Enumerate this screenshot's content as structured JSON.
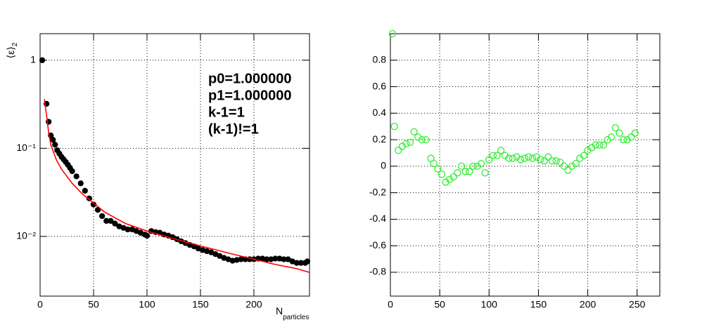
{
  "chart_data": [
    {
      "type": "scatter",
      "log_y": true,
      "grid": true,
      "ylabel": "⟨ε⟩",
      "ylabel_sub": "2",
      "xlabel": "N",
      "xlabel_sub": "particles",
      "annotations": [
        "p0=1.000000",
        "p1=1.000000",
        "k-1=1",
        "(k-1)!=1"
      ],
      "xlim": [
        0,
        252
      ],
      "ylim": [
        0.0021,
        2
      ],
      "xticks": [
        0,
        50,
        100,
        150,
        200
      ],
      "yticks": [
        {
          "value": 0.01,
          "label": "10⁻²"
        },
        {
          "value": 0.1,
          "label": "10⁻¹"
        },
        1
      ],
      "series": [
        {
          "color": "#000000",
          "style": "points-filled",
          "x": [
            2,
            6,
            8,
            10,
            12,
            14,
            16,
            18,
            20,
            22,
            24,
            26,
            28,
            30,
            34,
            38,
            42,
            46,
            50,
            54,
            58,
            62,
            66,
            70,
            74,
            78,
            82,
            86,
            90,
            94,
            98,
            100,
            104,
            108,
            112,
            116,
            120,
            124,
            128,
            132,
            136,
            140,
            144,
            148,
            152,
            156,
            160,
            164,
            168,
            172,
            176,
            180,
            184,
            188,
            192,
            196,
            200,
            204,
            208,
            212,
            216,
            220,
            224,
            228,
            232,
            236,
            240,
            244,
            248,
            250
          ],
          "values": [
            1.0,
            0.32,
            0.2,
            0.14,
            0.125,
            0.11,
            0.095,
            0.087,
            0.08,
            0.075,
            0.07,
            0.065,
            0.06,
            0.055,
            0.048,
            0.04,
            0.033,
            0.027,
            0.023,
            0.02,
            0.017,
            0.015,
            0.015,
            0.014,
            0.013,
            0.0125,
            0.012,
            0.012,
            0.0115,
            0.011,
            0.0105,
            0.0102,
            0.0115,
            0.0112,
            0.011,
            0.0105,
            0.0102,
            0.0098,
            0.0093,
            0.0088,
            0.0084,
            0.008,
            0.0077,
            0.0073,
            0.007,
            0.0068,
            0.0066,
            0.0063,
            0.006,
            0.0057,
            0.0055,
            0.0053,
            0.0054,
            0.0055,
            0.0055,
            0.0055,
            0.0055,
            0.0056,
            0.0056,
            0.0055,
            0.0055,
            0.0056,
            0.0056,
            0.0055,
            0.0055,
            0.0052,
            0.005,
            0.005,
            0.005,
            0.0052
          ]
        },
        {
          "color": "#ff0000",
          "style": "line",
          "x": [
            4,
            6,
            8,
            10,
            15,
            20,
            30,
            40,
            50,
            60,
            80,
            100,
            120,
            150,
            180,
            200,
            220,
            240,
            252
          ],
          "values": [
            0.36,
            0.24,
            0.15,
            0.11,
            0.075,
            0.058,
            0.04,
            0.03,
            0.024,
            0.019,
            0.014,
            0.0115,
            0.0098,
            0.0078,
            0.0063,
            0.0055,
            0.0048,
            0.0043,
            0.0039
          ]
        }
      ]
    },
    {
      "type": "scatter",
      "grid": true,
      "xlim": [
        0,
        273
      ],
      "ylim": [
        -0.98,
        1
      ],
      "xticks": [
        0,
        50,
        100,
        150,
        200,
        250
      ],
      "yticks": [
        -0.8,
        -0.6,
        -0.4,
        -0.2,
        0,
        0.2,
        0.4,
        0.6,
        0.8
      ],
      "series": [
        {
          "color": "#33ee33",
          "style": "points-open",
          "x": [
            2,
            4,
            8,
            12,
            16,
            20,
            24,
            28,
            32,
            36,
            41,
            44,
            48,
            52,
            56,
            60,
            64,
            68,
            72,
            76,
            80,
            84,
            88,
            92,
            96,
            100,
            104,
            108,
            112,
            116,
            120,
            124,
            128,
            132,
            136,
            140,
            144,
            148,
            152,
            156,
            160,
            164,
            168,
            172,
            176,
            180,
            184,
            188,
            192,
            196,
            200,
            204,
            208,
            212,
            216,
            220,
            224,
            228,
            232,
            236,
            240,
            244,
            248
          ],
          "values": [
            1.0,
            0.3,
            0.12,
            0.15,
            0.17,
            0.18,
            0.26,
            0.22,
            0.2,
            0.2,
            0.06,
            0.02,
            -0.02,
            -0.06,
            -0.12,
            -0.1,
            -0.08,
            -0.05,
            0.0,
            -0.04,
            -0.04,
            0.0,
            0.0,
            0.02,
            -0.05,
            0.05,
            0.08,
            0.08,
            0.12,
            0.08,
            0.06,
            0.06,
            0.07,
            0.05,
            0.06,
            0.07,
            0.06,
            0.07,
            0.05,
            0.04,
            0.07,
            0.04,
            0.04,
            0.03,
            0.0,
            -0.03,
            0.0,
            0.02,
            0.06,
            0.08,
            0.12,
            0.14,
            0.16,
            0.16,
            0.16,
            0.2,
            0.22,
            0.29,
            0.25,
            0.2,
            0.2,
            0.22,
            0.25
          ]
        }
      ]
    }
  ]
}
